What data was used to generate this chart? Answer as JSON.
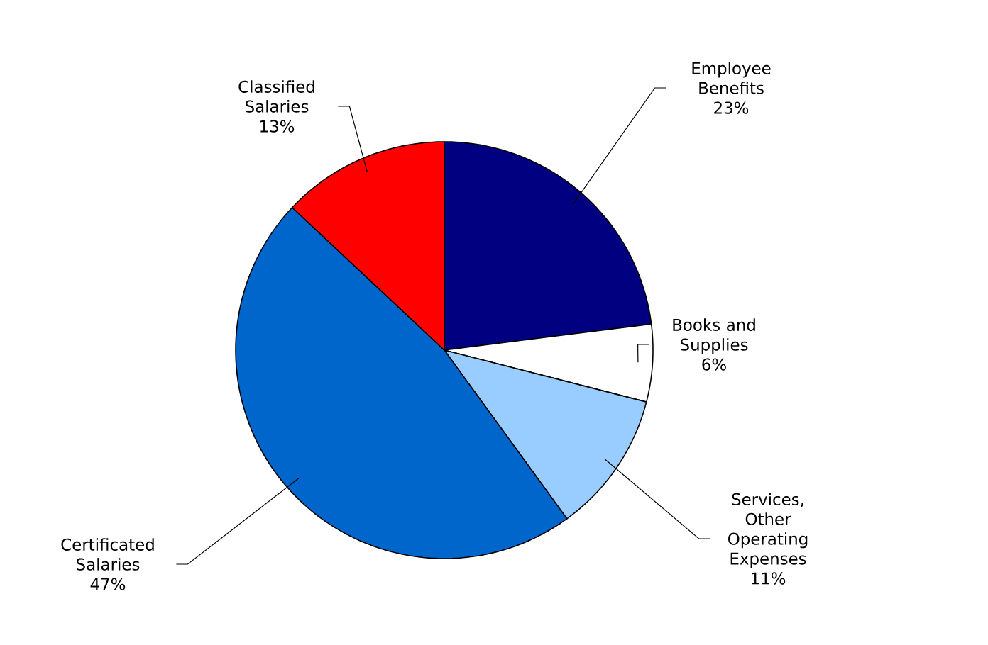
{
  "chart_data": {
    "type": "pie",
    "categories": [
      "Employee Benefits",
      "Books and Supplies",
      "Services, Other Operating Expenses",
      "Certificated Salaries",
      "Classified Salaries"
    ],
    "values": [
      23,
      6,
      11,
      47,
      13
    ],
    "value_labels": [
      "23%",
      "6%",
      "11%",
      "47%",
      "13%"
    ],
    "colors": [
      "#000080",
      "#ffffff",
      "#99ccff",
      "#0066cc",
      "#ff0000"
    ]
  }
}
